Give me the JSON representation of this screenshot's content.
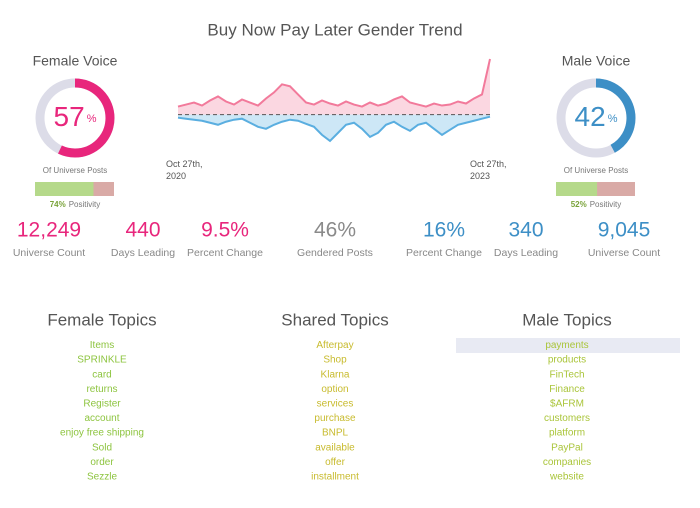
{
  "title": "Buy Now Pay Later Gender Trend",
  "chart_data": [
    {
      "type": "donut",
      "title": "Female Voice",
      "values": [
        57
      ],
      "unit": "%",
      "color": "#e8267c",
      "track_color": "#dcdce8",
      "caption": "Of Universe Posts",
      "positivity": 74,
      "positivity_label": "74%",
      "positivity_text": "Positivity"
    },
    {
      "type": "area",
      "categories": [
        "Oct 27th, 2020",
        null,
        null,
        null,
        null,
        null,
        null,
        null,
        null,
        null,
        null,
        null,
        null,
        null,
        null,
        null,
        null,
        null,
        null,
        null,
        null,
        null,
        null,
        null,
        null,
        null,
        null,
        null,
        null,
        null,
        null,
        null,
        null,
        null,
        null,
        null,
        null,
        null,
        null,
        "Oct 27th, 2023"
      ],
      "ylim": [
        -30,
        56
      ],
      "series": [
        {
          "color": "#f27a9b",
          "values": [
            8,
            10,
            12,
            9,
            14,
            18,
            13,
            10,
            15,
            12,
            9,
            16,
            22,
            30,
            28,
            20,
            12,
            10,
            14,
            11,
            9,
            13,
            10,
            8,
            12,
            9,
            11,
            15,
            18,
            12,
            10,
            8,
            11,
            9,
            10,
            13,
            11,
            16,
            20,
            55
          ]
        },
        {
          "color": "#5aaee0",
          "values": [
            -3,
            -4,
            -5,
            -6,
            -8,
            -10,
            -7,
            -5,
            -4,
            -8,
            -12,
            -14,
            -10,
            -7,
            -5,
            -6,
            -9,
            -12,
            -20,
            -26,
            -18,
            -10,
            -8,
            -14,
            -22,
            -18,
            -10,
            -7,
            -12,
            -16,
            -10,
            -8,
            -14,
            -20,
            -15,
            -10,
            -8,
            -6,
            -4,
            -2
          ]
        }
      ]
    },
    {
      "type": "donut",
      "title": "Male Voice",
      "values": [
        42
      ],
      "unit": "%",
      "color": "#3d8fc6",
      "track_color": "#dcdce8",
      "caption": "Of Universe Posts",
      "positivity": 52,
      "positivity_label": "52%",
      "positivity_text": "Positivity"
    }
  ],
  "stats": [
    {
      "value": "12,249",
      "label": "Universe Count",
      "color": "#e8267c"
    },
    {
      "value": "440",
      "label": "Days Leading",
      "color": "#e8267c"
    },
    {
      "value": "9.5%",
      "label": "Percent Change",
      "color": "#e8267c"
    },
    {
      "value": "46%",
      "label": "Gendered Posts",
      "color": "#8a8a8a"
    },
    {
      "value": "16%",
      "label": "Percent Change",
      "color": "#3d8fc6"
    },
    {
      "value": "340",
      "label": "Days Leading",
      "color": "#3d8fc6"
    },
    {
      "value": "9,045",
      "label": "Universe Count",
      "color": "#3d8fc6"
    }
  ],
  "topics": [
    {
      "title": "Female Topics",
      "color": "#8dc43f",
      "items": [
        "Items",
        "SPRINKLE",
        "card",
        "returns",
        "Register",
        "account",
        "enjoy free shipping",
        "Sold",
        "order",
        "Sezzle"
      ]
    },
    {
      "title": "Shared Topics",
      "color": "#c8bb2e",
      "items": [
        "Afterpay",
        "Shop",
        "Klarna",
        "option",
        "services",
        "purchase",
        "BNPL",
        "available",
        "offer",
        "installment"
      ]
    },
    {
      "title": "Male Topics",
      "color": "#aac53a",
      "items": [
        "payments",
        "products",
        "FinTech",
        "Finance",
        "$AFRM",
        "customers",
        "platform",
        "PayPal",
        "companies",
        "website"
      ]
    }
  ]
}
